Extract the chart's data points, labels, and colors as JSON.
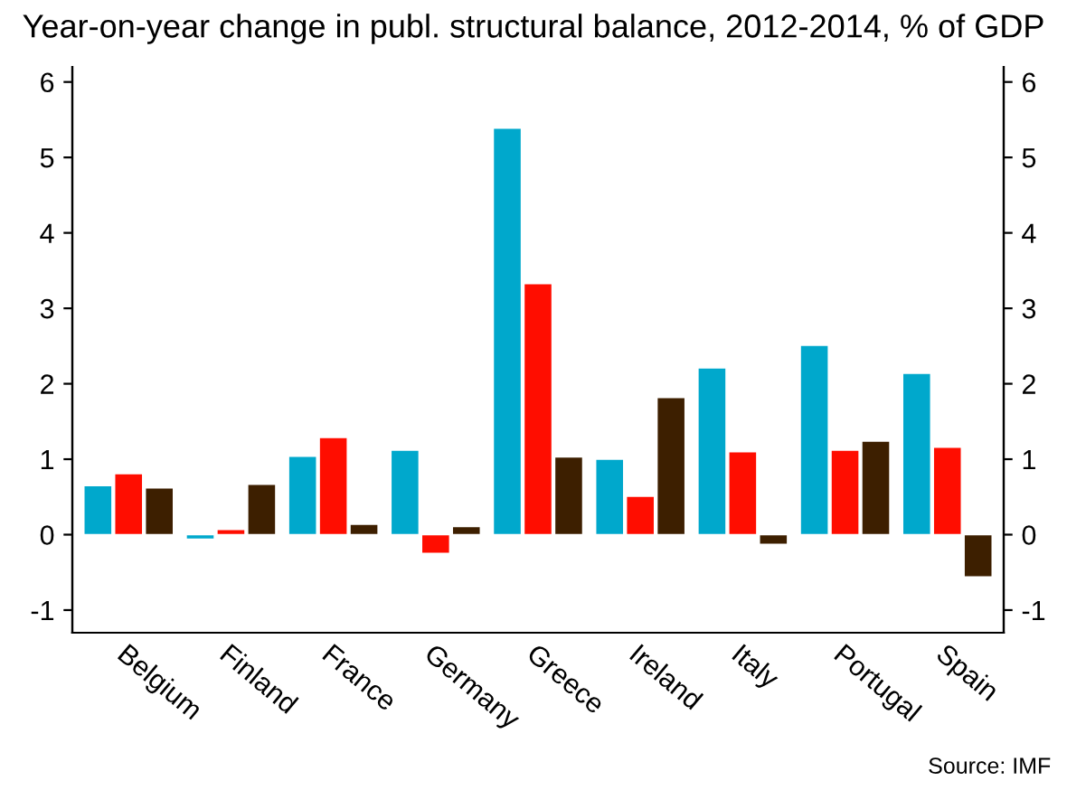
{
  "chart_data": {
    "type": "bar",
    "title": "Year-on-year change in publ. structural balance, 2012-2014, % of GDP",
    "categories": [
      "Belgium",
      "Finland",
      "France",
      "Germany",
      "Greece",
      "Ireland",
      "Italy",
      "Portugal",
      "Spain"
    ],
    "series": [
      {
        "color": "#00a8cc",
        "values": [
          0.65,
          -0.06,
          1.04,
          1.12,
          5.39,
          1.0,
          2.21,
          2.51,
          2.14
        ]
      },
      {
        "color": "#ff0d00",
        "values": [
          0.81,
          0.07,
          1.29,
          -0.25,
          3.33,
          0.51,
          1.1,
          1.12,
          1.16
        ]
      },
      {
        "color": "#3d1f00",
        "values": [
          0.62,
          0.67,
          0.14,
          0.11,
          1.03,
          1.82,
          -0.13,
          1.24,
          -0.56
        ]
      }
    ],
    "ylim": [
      -1.3,
      6.2
    ],
    "yticks": [
      -1,
      0,
      1,
      2,
      3,
      4,
      5,
      6
    ],
    "y2lim": [
      -1.3,
      6.2
    ],
    "y2ticks": [
      -1,
      0,
      1,
      2,
      3,
      4,
      5,
      6
    ],
    "annotations": [
      "Source: IMF"
    ]
  }
}
